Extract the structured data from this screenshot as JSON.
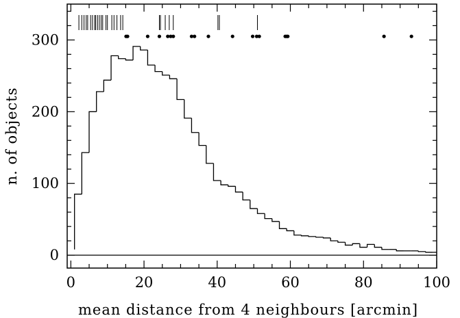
{
  "chart_data": {
    "type": "histogram",
    "xlabel": "mean distance from 4 neighbours [arcmin]",
    "ylabel": "n. of objects",
    "xlim": [
      -1,
      100
    ],
    "ylim": [
      -18,
      350
    ],
    "xticks": [
      0,
      20,
      40,
      60,
      80,
      100
    ],
    "yticks": [
      0,
      100,
      200,
      300
    ],
    "grid": false,
    "bin_width": 2,
    "bins_start": 1,
    "values": [
      85,
      143,
      200,
      228,
      244,
      278,
      274,
      272,
      291,
      286,
      265,
      256,
      251,
      246,
      217,
      191,
      171,
      153,
      128,
      104,
      98,
      96,
      88,
      77,
      65,
      58,
      51,
      47,
      37,
      34,
      28,
      27,
      26,
      25,
      24,
      20,
      18,
      14,
      16,
      11,
      15,
      11,
      8,
      8,
      6,
      6,
      6,
      5,
      4,
      4
    ],
    "first_step_value": 8,
    "vertical_marks_x": [
      2.2,
      3.0,
      3.6,
      4.2,
      4.6,
      5.4,
      5.9,
      6.5,
      6.8,
      7.3,
      7.8,
      8.3,
      8.7,
      9.6,
      10.0,
      11.2,
      11.8,
      12.6,
      13.6,
      14.2,
      24.2,
      24.5,
      25.8,
      26.9,
      28.0,
      40.2,
      40.6,
      51.0
    ],
    "dot_marks_x": [
      15.1,
      15.5,
      21.0,
      24.2,
      26.5,
      27.3,
      28.0,
      33.0,
      33.8,
      37.6,
      44.2,
      49.7,
      50.8,
      51.5,
      58.6,
      59.0,
      59.3,
      85.6,
      93.1
    ],
    "dot_marks_y": 305
  }
}
